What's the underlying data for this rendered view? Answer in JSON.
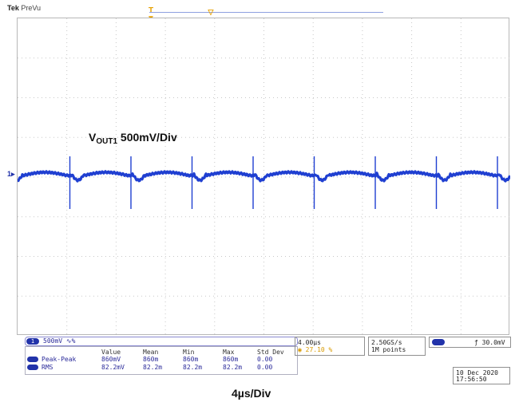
{
  "header": {
    "brand": "Tek",
    "mode": "PreVu"
  },
  "markers": {
    "trigger_pos": "T",
    "channel": "1"
  },
  "waveform_label": {
    "main": "V",
    "sub": "OUT1",
    "scale": "500mV/Div"
  },
  "channel": {
    "number": "1",
    "scale": "500mV",
    "coupling": "∿%"
  },
  "measurements": {
    "headers": [
      "Value",
      "Mean",
      "Min",
      "Max",
      "Std Dev"
    ],
    "rows": [
      {
        "name": "Peak-Peak",
        "values": [
          "860mV",
          "860m",
          "860m",
          "860m",
          "0.00"
        ]
      },
      {
        "name": "RMS",
        "values": [
          "82.2mV",
          "82.2m",
          "82.2m",
          "82.2m",
          "0.00"
        ]
      }
    ]
  },
  "timebase": {
    "per_div": "4.00µs",
    "delay": "27.10 %"
  },
  "acquisition": {
    "rate": "2.50GS/s",
    "points": "1M points"
  },
  "trigger": {
    "slope_icon": "rising-edge-icon",
    "level": "30.0mV"
  },
  "timestamp": {
    "date": "10 Dec 2020",
    "time": "17:56:50"
  },
  "footer": {
    "time_per_div": "4µs/Div"
  },
  "colors": {
    "trace": "#1f3fd1",
    "trigger_marker": "#e6a000"
  }
}
